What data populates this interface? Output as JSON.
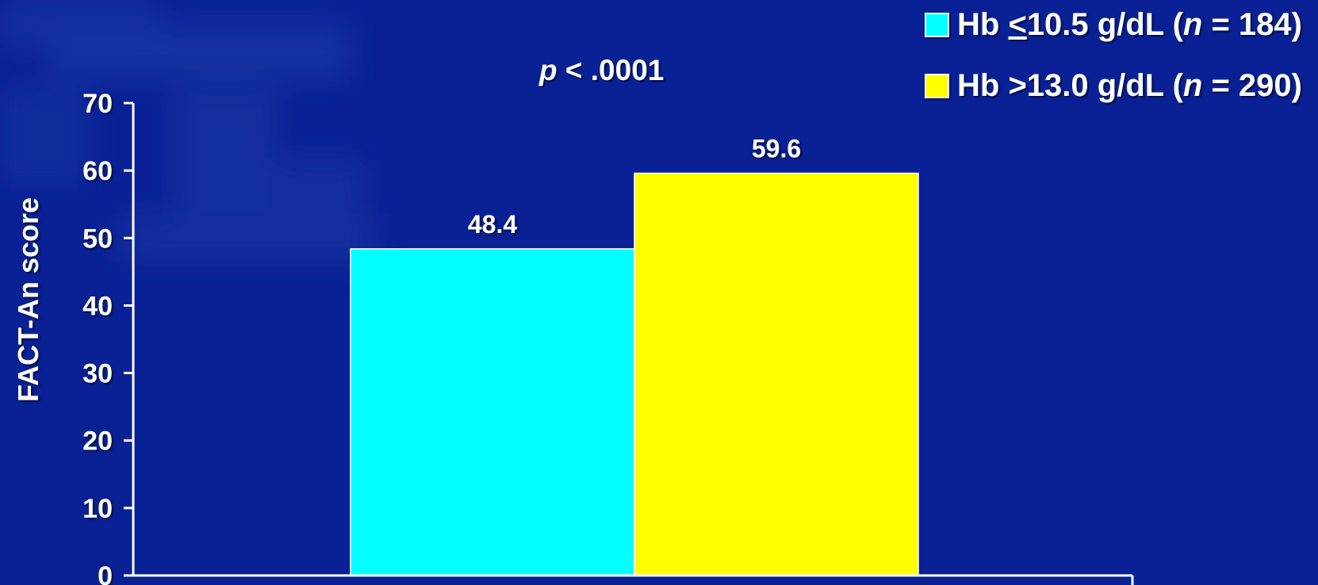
{
  "colors": {
    "background": "#0a2196",
    "text": "#ffffff",
    "axis": "#ffffff",
    "cyan": "#00ffff",
    "yellow": "#ffff00"
  },
  "legend": [
    {
      "swatch_color": "#00ffff",
      "pre": "Hb ",
      "le": "<",
      "mid": "10.5 g/dL (",
      "n": "n",
      "post": " = 184)"
    },
    {
      "swatch_color": "#ffff00",
      "pre": "Hb >13.0 g/dL (",
      "n": "n",
      "post": " = 290)"
    }
  ],
  "annotation": {
    "p": "p",
    "rest": " < .0001"
  },
  "chart_data": {
    "type": "bar",
    "ylabel": "FACT-An score",
    "xlabel": "",
    "ylim": [
      0,
      70
    ],
    "yticks": [
      0,
      10,
      20,
      30,
      40,
      50,
      60,
      70
    ],
    "grid": false,
    "legend_position": "top-right",
    "series": [
      {
        "value": 48.4,
        "label": "48.4",
        "color": "#00ffff"
      },
      {
        "value": 59.6,
        "label": "59.6",
        "color": "#ffff00"
      }
    ]
  }
}
